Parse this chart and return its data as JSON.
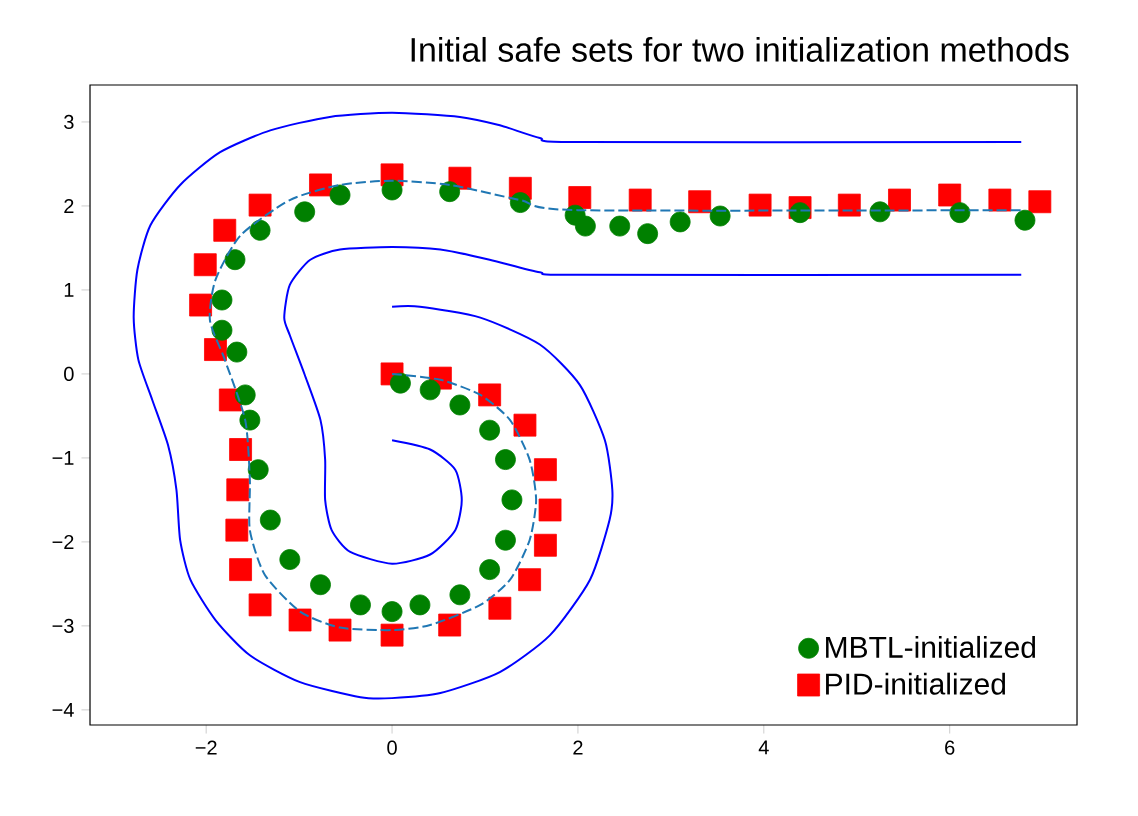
{
  "chart_data": {
    "type": "line",
    "title": "Initial safe sets for two initialization methods",
    "xlim": [
      -3.25,
      7.37
    ],
    "ylim": [
      -4.18,
      3.44
    ],
    "xticks": [
      {
        "value": -2,
        "label": "−2"
      },
      0,
      2,
      4,
      6
    ],
    "yticks": [
      {
        "value": -4,
        "label": "−4"
      },
      {
        "value": -3,
        "label": "−3"
      },
      {
        "value": -2,
        "label": "−2"
      },
      {
        "value": -1,
        "label": "−1"
      },
      0,
      1,
      2,
      3
    ],
    "legend": "bottom right",
    "grid": false,
    "series": [
      {
        "type": "line",
        "color": "#0000ff",
        "line_style": "solid",
        "marker": "none",
        "x": [
          6.77,
          2.0,
          1.59,
          1.16,
          0.73,
          0,
          -0.67,
          -1.31,
          -1.85,
          -2.28,
          -2.6,
          -2.74,
          -2.78,
          -2.73,
          -2.58,
          -2.41,
          -2.32,
          -2.28,
          -2.17,
          -1.9,
          -1.53,
          -0.99,
          -0.34,
          0,
          0.52,
          1.16,
          1.7,
          2.13,
          2.34,
          2.37,
          2.29,
          2.02,
          1.59,
          0.95,
          0.3,
          0
        ],
        "values": [
          2.76,
          2.76,
          2.81,
          2.96,
          3.06,
          3.11,
          3.06,
          2.9,
          2.64,
          2.25,
          1.77,
          1.24,
          0.67,
          0.17,
          -0.31,
          -0.85,
          -1.38,
          -1.98,
          -2.45,
          -2.93,
          -3.35,
          -3.67,
          -3.85,
          -3.86,
          -3.8,
          -3.55,
          -3.11,
          -2.45,
          -1.74,
          -1.38,
          -0.79,
          -0.13,
          0.35,
          0.67,
          0.8,
          0.8
        ]
      },
      {
        "type": "line",
        "color": "#0000ff",
        "line_style": "solid",
        "marker": "none",
        "x": [
          6.77,
          2.0,
          1.59,
          1.05,
          0.52,
          0,
          -0.56,
          -0.88,
          -1.1,
          -1.16,
          -1.1,
          -0.94,
          -0.77,
          -0.72,
          -0.72,
          -0.65,
          -0.45,
          0,
          0.41,
          0.68,
          0.75,
          0.68,
          0.41,
          0
        ],
        "values": [
          1.18,
          1.18,
          1.21,
          1.36,
          1.48,
          1.51,
          1.48,
          1.36,
          1.06,
          0.67,
          0.46,
          -0.01,
          -0.55,
          -1.02,
          -1.5,
          -1.86,
          -2.12,
          -2.26,
          -2.15,
          -1.86,
          -1.5,
          -1.14,
          -0.9,
          -0.79
        ]
      },
      {
        "type": "scatter",
        "name": "MBTL-initialized",
        "color": "#008000",
        "marker": "circle",
        "x": [
          0.09,
          0.41,
          0.73,
          1.05,
          1.22,
          1.29,
          1.22,
          1.05,
          0.73,
          0.3,
          0,
          -0.34,
          -0.77,
          -1.1,
          -1.31,
          -1.44,
          -1.53,
          -1.58,
          -1.67,
          -1.83,
          -1.83,
          -1.69,
          -1.42,
          -0.94,
          -0.56,
          0,
          0.62,
          1.38,
          1.97,
          2.08,
          2.45,
          2.75,
          3.1,
          3.53,
          4.39,
          5.25,
          6.11,
          6.81
        ],
        "values": [
          -0.11,
          -0.19,
          -0.37,
          -0.67,
          -1.02,
          -1.5,
          -1.98,
          -2.33,
          -2.63,
          -2.75,
          -2.83,
          -2.75,
          -2.51,
          -2.21,
          -1.74,
          -1.14,
          -0.55,
          -0.25,
          0.26,
          0.52,
          0.88,
          1.36,
          1.71,
          1.93,
          2.13,
          2.19,
          2.17,
          2.04,
          1.89,
          1.76,
          1.76,
          1.67,
          1.81,
          1.88,
          1.92,
          1.93,
          1.92,
          1.83
        ]
      },
      {
        "type": "scatter",
        "name": "PID-initialized",
        "color": "#ff0000",
        "marker": "square",
        "x": [
          0,
          0.52,
          1.05,
          1.43,
          1.65,
          1.7,
          1.65,
          1.48,
          1.16,
          0.62,
          0,
          -0.56,
          -0.99,
          -1.42,
          -1.63,
          -1.67,
          -1.66,
          -1.63,
          -1.74,
          -1.9,
          -2.06,
          -2.01,
          -1.8,
          -1.42,
          -0.77,
          0,
          0.73,
          1.38,
          2.02,
          2.67,
          3.31,
          3.96,
          4.39,
          4.92,
          5.46,
          6.0,
          6.54,
          6.97
        ],
        "values": [
          0,
          -0.05,
          -0.25,
          -0.61,
          -1.14,
          -1.62,
          -2.04,
          -2.45,
          -2.79,
          -2.99,
          -3.11,
          -3.05,
          -2.93,
          -2.75,
          -2.33,
          -1.86,
          -1.38,
          -0.9,
          -0.31,
          0.29,
          0.82,
          1.3,
          1.71,
          2.01,
          2.25,
          2.37,
          2.33,
          2.21,
          2.1,
          2.07,
          2.05,
          2.01,
          1.98,
          2.01,
          2.07,
          2.13,
          2.07,
          2.05
        ]
      },
      {
        "type": "line",
        "color": "#1f77b4",
        "line_style": "dashed",
        "marker": "none",
        "x": [
          0,
          0.52,
          0.95,
          1.27,
          1.48,
          1.55,
          1.48,
          1.27,
          0.95,
          0.41,
          0,
          -0.56,
          -0.99,
          -1.37,
          -1.53,
          -1.53,
          -1.58,
          -1.8,
          -1.96,
          -1.9,
          -1.63,
          -1.1,
          -0.56,
          0,
          0.62,
          1.38,
          2.0,
          6.77
        ],
        "values": [
          0,
          -0.07,
          -0.25,
          -0.55,
          -1.02,
          -1.5,
          -1.98,
          -2.45,
          -2.75,
          -2.99,
          -3.05,
          -3.02,
          -2.83,
          -2.39,
          -1.86,
          -1.26,
          -0.55,
          0.17,
          0.64,
          1.12,
          1.65,
          2.07,
          2.25,
          2.3,
          2.25,
          2.07,
          1.95,
          1.95
        ]
      }
    ]
  }
}
